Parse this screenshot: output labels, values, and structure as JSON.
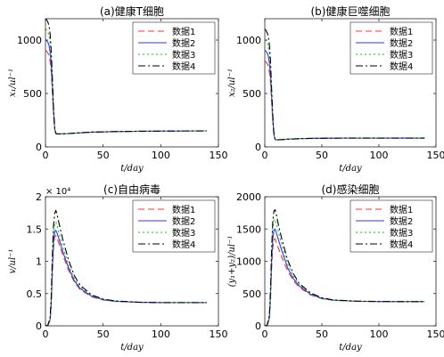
{
  "chart_data": [
    {
      "type": "line",
      "title": "(a)健康T细胞",
      "xlabel": "t/day",
      "ylabel": "x₁/ul⁻¹",
      "xlim": [
        0,
        150
      ],
      "ylim": [
        0,
        1200
      ],
      "xticks": [
        0,
        50,
        100,
        150
      ],
      "yticks": [
        0,
        500,
        1000
      ],
      "ytick_labels": [
        "0",
        "500",
        "1000"
      ],
      "y_multiplier": "",
      "legend": "top-right",
      "series": [
        {
          "name": "数据1",
          "color": "#ff3333",
          "dash": "7,4",
          "x": [
            0,
            0.5,
            1,
            2,
            3,
            4,
            5,
            6,
            7,
            8,
            9,
            10,
            15,
            20,
            30,
            40,
            60,
            80,
            100,
            120,
            140
          ],
          "y": [
            900,
            900,
            895,
            880,
            860,
            800,
            700,
            500,
            300,
            160,
            125,
            120,
            122,
            125,
            132,
            138,
            143,
            146,
            148,
            149,
            150
          ]
        },
        {
          "name": "数据2",
          "color": "#3333ff",
          "dash": "",
          "x": [
            0,
            0.5,
            1,
            2,
            3,
            4,
            5,
            6,
            7,
            8,
            9,
            10,
            15,
            20,
            30,
            40,
            60,
            80,
            100,
            120,
            140
          ],
          "y": [
            1000,
            1000,
            995,
            980,
            955,
            890,
            760,
            560,
            330,
            170,
            125,
            120,
            122,
            125,
            132,
            138,
            143,
            146,
            148,
            149,
            150
          ]
        },
        {
          "name": "数据3",
          "color": "#00cc00",
          "dash": "2,3",
          "x": [
            0,
            0.5,
            1,
            2,
            3,
            4,
            5,
            6,
            7,
            8,
            9,
            10,
            15,
            20,
            30,
            40,
            60,
            80,
            100,
            120,
            140
          ],
          "y": [
            1100,
            1100,
            1095,
            1075,
            1050,
            975,
            830,
            600,
            350,
            175,
            126,
            121,
            122,
            125,
            132,
            138,
            143,
            146,
            148,
            149,
            150
          ]
        },
        {
          "name": "数据4",
          "color": "#000000",
          "dash": "8,3,2,3",
          "x": [
            0,
            0.5,
            1,
            2,
            3,
            4,
            5,
            6,
            7,
            8,
            9,
            10,
            15,
            20,
            30,
            40,
            60,
            80,
            100,
            120,
            140
          ],
          "y": [
            1200,
            1200,
            1190,
            1170,
            1140,
            1060,
            900,
            650,
            370,
            180,
            127,
            121,
            122,
            125,
            132,
            138,
            143,
            146,
            148,
            149,
            150
          ]
        }
      ]
    },
    {
      "type": "line",
      "title": "(b)健康巨噬细胞",
      "xlabel": "t/day",
      "ylabel": "x₂/ul⁻¹",
      "xlim": [
        0,
        150
      ],
      "ylim": [
        0,
        1200
      ],
      "xticks": [
        0,
        50,
        100,
        150
      ],
      "yticks": [
        0,
        500,
        1000
      ],
      "ytick_labels": [
        "0",
        "500",
        "1000"
      ],
      "y_multiplier": "",
      "legend": "top-right",
      "series": [
        {
          "name": "数据1",
          "color": "#ff3333",
          "dash": "7,4",
          "x": [
            0,
            0.5,
            1,
            2,
            3,
            4,
            5,
            6,
            7,
            8,
            9,
            10,
            15,
            20,
            30,
            40,
            60,
            80,
            100,
            120,
            140
          ],
          "y": [
            800,
            800,
            795,
            780,
            760,
            700,
            600,
            420,
            240,
            110,
            70,
            65,
            68,
            72,
            77,
            80,
            82,
            83,
            83,
            83,
            83
          ]
        },
        {
          "name": "数据2",
          "color": "#3333ff",
          "dash": "",
          "x": [
            0,
            0.5,
            1,
            2,
            3,
            4,
            5,
            6,
            7,
            8,
            9,
            10,
            15,
            20,
            30,
            40,
            60,
            80,
            100,
            120,
            140
          ],
          "y": [
            900,
            900,
            895,
            880,
            855,
            790,
            670,
            460,
            260,
            115,
            70,
            65,
            68,
            72,
            77,
            80,
            82,
            83,
            83,
            83,
            83
          ]
        },
        {
          "name": "数据3",
          "color": "#00cc00",
          "dash": "2,3",
          "x": [
            0,
            0.5,
            1,
            2,
            3,
            4,
            5,
            6,
            7,
            8,
            9,
            10,
            15,
            20,
            30,
            40,
            60,
            80,
            100,
            120,
            140
          ],
          "y": [
            1000,
            1000,
            995,
            975,
            950,
            875,
            740,
            500,
            280,
            120,
            71,
            65,
            68,
            72,
            77,
            80,
            82,
            83,
            83,
            83,
            83
          ]
        },
        {
          "name": "数据4",
          "color": "#000000",
          "dash": "8,3,2,3",
          "x": [
            0,
            0.5,
            1,
            2,
            3,
            4,
            5,
            6,
            7,
            8,
            9,
            10,
            15,
            20,
            30,
            40,
            60,
            80,
            100,
            120,
            140
          ],
          "y": [
            1100,
            1100,
            1090,
            1070,
            1040,
            960,
            810,
            540,
            300,
            125,
            72,
            66,
            68,
            72,
            77,
            80,
            82,
            83,
            83,
            83,
            83
          ]
        }
      ]
    },
    {
      "type": "line",
      "title": "(c)自由病毒",
      "xlabel": "t/day",
      "ylabel": "v/ul⁻¹",
      "xlim": [
        0,
        150
      ],
      "ylim": [
        0,
        20000
      ],
      "xticks": [
        0,
        50,
        100,
        150
      ],
      "yticks": [
        0,
        5000,
        10000,
        15000,
        20000
      ],
      "ytick_labels": [
        "0",
        "0.5",
        "1",
        "1.5",
        "2"
      ],
      "y_multiplier": "× 10⁴",
      "legend": "top-right",
      "series": [
        {
          "name": "数据1",
          "color": "#ff3333",
          "dash": "7,4",
          "x": [
            0,
            2,
            4,
            5,
            6,
            7,
            8,
            9,
            10,
            12,
            15,
            20,
            25,
            30,
            40,
            50,
            60,
            80,
            100,
            120,
            140
          ],
          "y": [
            0,
            50,
            800,
            3000,
            8000,
            12000,
            13800,
            14000,
            13600,
            12600,
            11000,
            8600,
            6800,
            5600,
            4500,
            4000,
            3800,
            3650,
            3600,
            3600,
            3600
          ]
        },
        {
          "name": "数据2",
          "color": "#3333ff",
          "dash": "",
          "x": [
            0,
            2,
            4,
            5,
            6,
            7,
            8,
            9,
            10,
            12,
            15,
            20,
            25,
            30,
            40,
            50,
            60,
            80,
            100,
            120,
            140
          ],
          "y": [
            0,
            60,
            900,
            3500,
            9000,
            13000,
            14600,
            14800,
            14400,
            13300,
            11500,
            9000,
            7000,
            5800,
            4600,
            4050,
            3800,
            3650,
            3600,
            3600,
            3600
          ]
        },
        {
          "name": "数据3",
          "color": "#00cc00",
          "dash": "2,3",
          "x": [
            0,
            2,
            4,
            5,
            6,
            7,
            8,
            9,
            10,
            12,
            15,
            20,
            25,
            30,
            40,
            50,
            60,
            80,
            100,
            120,
            140
          ],
          "y": [
            0,
            70,
            1000,
            4000,
            10000,
            14200,
            15800,
            16100,
            15600,
            14200,
            12200,
            9400,
            7300,
            6000,
            4700,
            4100,
            3850,
            3660,
            3600,
            3600,
            3600
          ]
        },
        {
          "name": "数据4",
          "color": "#000000",
          "dash": "8,3,2,3",
          "x": [
            0,
            2,
            4,
            5,
            6,
            7,
            8,
            9,
            10,
            12,
            15,
            20,
            25,
            30,
            40,
            50,
            60,
            80,
            100,
            120,
            140
          ],
          "y": [
            0,
            80,
            1200,
            4600,
            11000,
            15600,
            17400,
            17900,
            17300,
            15700,
            13400,
            10200,
            7800,
            6300,
            4800,
            4150,
            3880,
            3670,
            3600,
            3600,
            3600
          ]
        }
      ]
    },
    {
      "type": "line",
      "title": "(d)感染细胞",
      "xlabel": "t/day",
      "ylabel": "(y₁+y₂)/ul⁻¹",
      "xlim": [
        0,
        150
      ],
      "ylim": [
        0,
        2000
      ],
      "xticks": [
        0,
        50,
        100,
        150
      ],
      "yticks": [
        0,
        500,
        1000,
        1500,
        2000
      ],
      "ytick_labels": [
        "0",
        "500",
        "1000",
        "1500",
        "2000"
      ],
      "y_multiplier": "",
      "legend": "top-right",
      "series": [
        {
          "name": "数据1",
          "color": "#ff3333",
          "dash": "7,4",
          "x": [
            0,
            2,
            4,
            5,
            6,
            7,
            8,
            9,
            10,
            12,
            15,
            20,
            25,
            30,
            40,
            50,
            60,
            80,
            100,
            120,
            140
          ],
          "y": [
            0,
            5,
            100,
            400,
            900,
            1200,
            1330,
            1350,
            1300,
            1200,
            1060,
            850,
            700,
            600,
            480,
            420,
            395,
            380,
            375,
            375,
            375
          ]
        },
        {
          "name": "数据2",
          "color": "#3333ff",
          "dash": "",
          "x": [
            0,
            2,
            4,
            5,
            6,
            7,
            8,
            9,
            10,
            12,
            15,
            20,
            25,
            30,
            40,
            50,
            60,
            80,
            100,
            120,
            140
          ],
          "y": [
            0,
            6,
            120,
            450,
            1000,
            1350,
            1480,
            1500,
            1450,
            1330,
            1160,
            900,
            730,
            620,
            490,
            425,
            398,
            381,
            376,
            375,
            375
          ]
        },
        {
          "name": "数据3",
          "color": "#00cc00",
          "dash": "2,3",
          "x": [
            0,
            2,
            4,
            5,
            6,
            7,
            8,
            9,
            10,
            12,
            15,
            20,
            25,
            30,
            40,
            50,
            60,
            80,
            100,
            120,
            140
          ],
          "y": [
            0,
            7,
            140,
            500,
            1100,
            1500,
            1640,
            1650,
            1590,
            1450,
            1250,
            960,
            770,
            640,
            500,
            430,
            400,
            382,
            376,
            375,
            375
          ]
        },
        {
          "name": "数据4",
          "color": "#000000",
          "dash": "8,3,2,3",
          "x": [
            0,
            2,
            4,
            5,
            6,
            7,
            8,
            9,
            10,
            12,
            15,
            20,
            25,
            30,
            40,
            50,
            60,
            80,
            100,
            120,
            140
          ],
          "y": [
            0,
            8,
            160,
            560,
            1200,
            1620,
            1780,
            1800,
            1730,
            1560,
            1340,
            1020,
            810,
            660,
            510,
            435,
            402,
            383,
            377,
            375,
            375
          ]
        }
      ]
    }
  ]
}
